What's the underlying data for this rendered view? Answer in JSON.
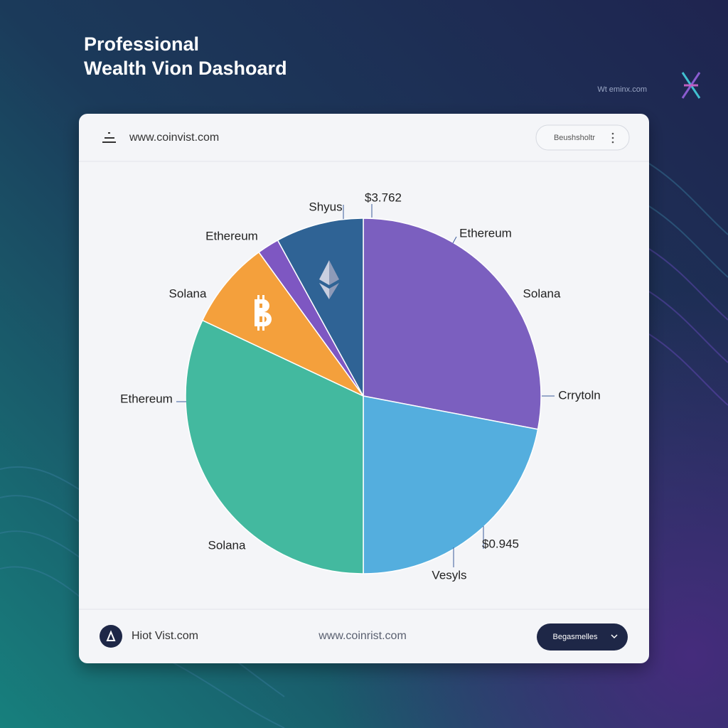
{
  "header": {
    "title_lines": [
      "Professional",
      "Wealth Vion Dashoard"
    ],
    "site": "Wt eminx.com"
  },
  "card": {
    "url": "www.coinvist.com",
    "button": "Beushsholtr"
  },
  "chart_data": {
    "type": "pie",
    "values": [
      28,
      22,
      32,
      8,
      2,
      8
    ],
    "colors": [
      "#7b5fbf",
      "#54aede",
      "#43b99f",
      "#f4a03c",
      "#7e57c2",
      "#2f6395"
    ],
    "annotations": [
      "Shyus",
      "$3.762",
      "Ethereum",
      "Ethereum",
      "Solana",
      "Solana",
      "Ethereum",
      "Crrytoln",
      "Solana",
      "$0.945",
      "Vesyls"
    ]
  },
  "footer": {
    "brand": "Hiot Vist.com",
    "url": "www.coinrist.com",
    "button": "Begasmelles"
  }
}
